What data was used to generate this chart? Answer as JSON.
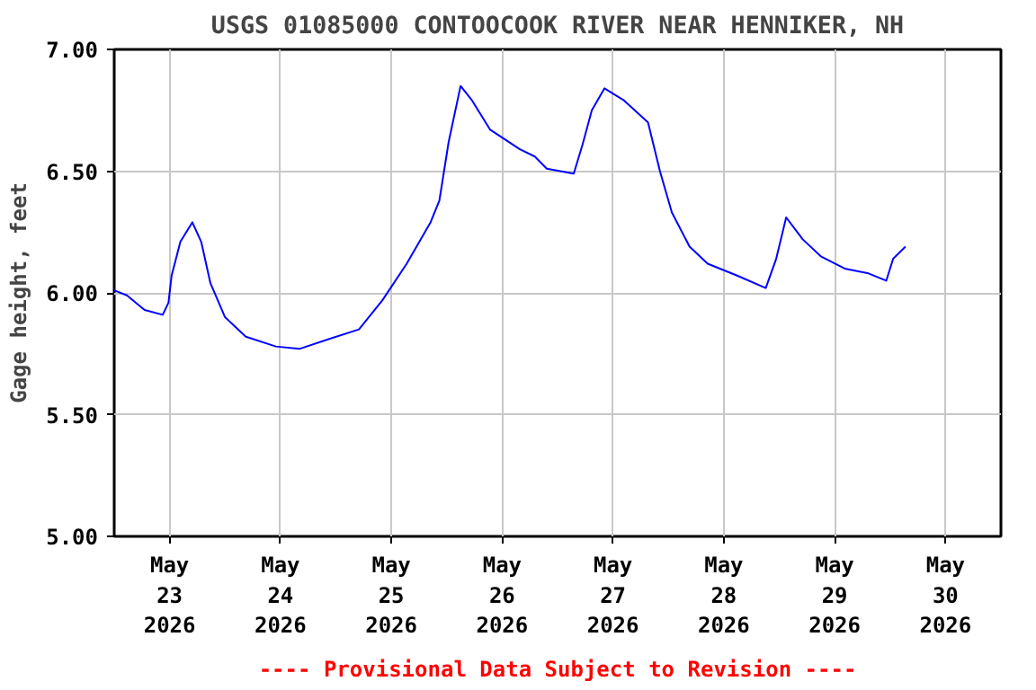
{
  "chart_data": {
    "type": "line",
    "title": "USGS 01085000 CONTOOCOOK RIVER NEAR HENNIKER, NH",
    "ylabel": "Gage height, feet",
    "annotations": [
      "---- Provisional Data Subject to Revision ----"
    ],
    "series": [
      {
        "color": "#0000ff",
        "x": [
          "2026-05-22T12:00",
          "2026-05-22T14:45",
          "2026-05-22T18:35",
          "2026-05-22T22:30",
          "2026-05-22T23:45",
          "2026-05-23T00:25",
          "2026-05-23T02:20",
          "2026-05-23T04:55",
          "2026-05-23T06:50",
          "2026-05-23T08:50",
          "2026-05-23T12:00",
          "2026-05-23T16:30",
          "2026-05-23T23:00",
          "2026-05-24T04:05",
          "2026-05-24T10:25",
          "2026-05-24T17:00",
          "2026-05-24T22:05",
          "2026-05-25T03:20",
          "2026-05-25T08:30",
          "2026-05-25T10:25",
          "2026-05-25T12:25",
          "2026-05-25T15:00",
          "2026-05-25T17:30",
          "2026-05-25T21:25",
          "2026-05-26T03:50",
          "2026-05-26T07:05",
          "2026-05-26T09:40",
          "2026-05-26T15:30",
          "2026-05-26T17:25",
          "2026-05-26T19:25",
          "2026-05-26T22:10",
          "2026-05-27T02:25",
          "2026-05-27T07:35",
          "2026-05-27T10:10",
          "2026-05-27T12:45",
          "2026-05-27T16:35",
          "2026-05-27T20:30",
          "2026-05-28T03:00",
          "2026-05-28T09:05",
          "2026-05-28T11:20",
          "2026-05-28T13:30",
          "2026-05-28T17:05",
          "2026-05-28T21:00",
          "2026-05-29T02:10",
          "2026-05-29T07:20",
          "2026-05-29T11:10",
          "2026-05-29T12:40",
          "2026-05-29T15:20"
        ],
        "values": [
          6.01,
          5.99,
          5.93,
          5.91,
          5.96,
          6.07,
          6.21,
          6.29,
          6.21,
          6.04,
          5.9,
          5.82,
          5.78,
          5.77,
          5.81,
          5.85,
          5.97,
          6.12,
          6.29,
          6.38,
          6.62,
          6.85,
          6.79,
          6.67,
          6.59,
          6.56,
          6.51,
          6.49,
          6.61,
          6.75,
          6.84,
          6.79,
          6.7,
          6.5,
          6.33,
          6.19,
          6.12,
          6.07,
          6.02,
          6.14,
          6.31,
          6.22,
          6.15,
          6.1,
          6.08,
          6.05,
          6.14,
          6.19
        ]
      }
    ],
    "xlim": [
      "2026-05-22T12:00",
      "2026-05-30T12:00"
    ],
    "xticks": [
      {
        "value": "2026-05-23",
        "label": "May\n23\n2026"
      },
      {
        "value": "2026-05-24",
        "label": "May\n24\n2026"
      },
      {
        "value": "2026-05-25",
        "label": "May\n25\n2026"
      },
      {
        "value": "2026-05-26",
        "label": "May\n26\n2026"
      },
      {
        "value": "2026-05-27",
        "label": "May\n27\n2026"
      },
      {
        "value": "2026-05-28",
        "label": "May\n28\n2026"
      },
      {
        "value": "2026-05-29",
        "label": "May\n29\n2026"
      },
      {
        "value": "2026-05-30",
        "label": "May\n30\n2026"
      }
    ],
    "ylim": [
      5.0,
      7.0
    ],
    "yticks": [
      {
        "value": 5.0,
        "label": "5.00"
      },
      {
        "value": 5.5,
        "label": "5.50"
      },
      {
        "value": 6.0,
        "label": "6.00"
      },
      {
        "value": 6.5,
        "label": "6.50"
      },
      {
        "value": 7.0,
        "label": "7.00"
      }
    ],
    "grid": true,
    "marker": "none",
    "line_style": "solid"
  }
}
